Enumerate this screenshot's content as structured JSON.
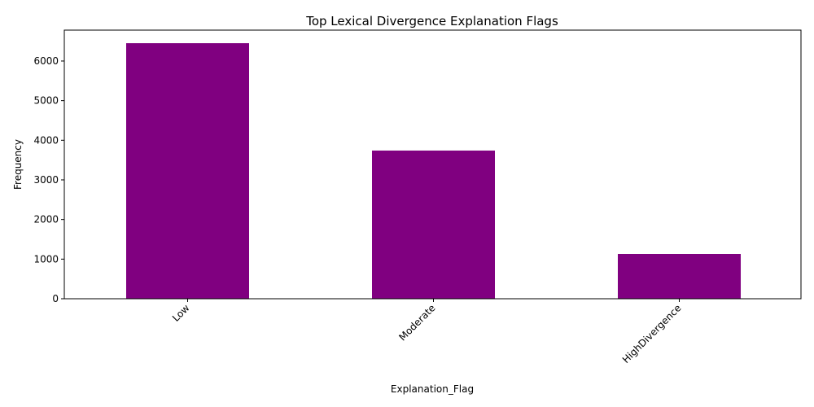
{
  "chart_data": {
    "type": "bar",
    "title": "Top Lexical Divergence Explanation Flags",
    "xlabel": "Explanation_Flag",
    "ylabel": "Frequency",
    "categories": [
      "Low",
      "Moderate",
      "HighDivergence"
    ],
    "values": [
      6450,
      3740,
      1130
    ],
    "ylim": [
      0,
      6780
    ],
    "yticks": [
      0,
      1000,
      2000,
      3000,
      4000,
      5000,
      6000
    ],
    "bar_color": "#800080",
    "grid": false,
    "legend": "none"
  }
}
